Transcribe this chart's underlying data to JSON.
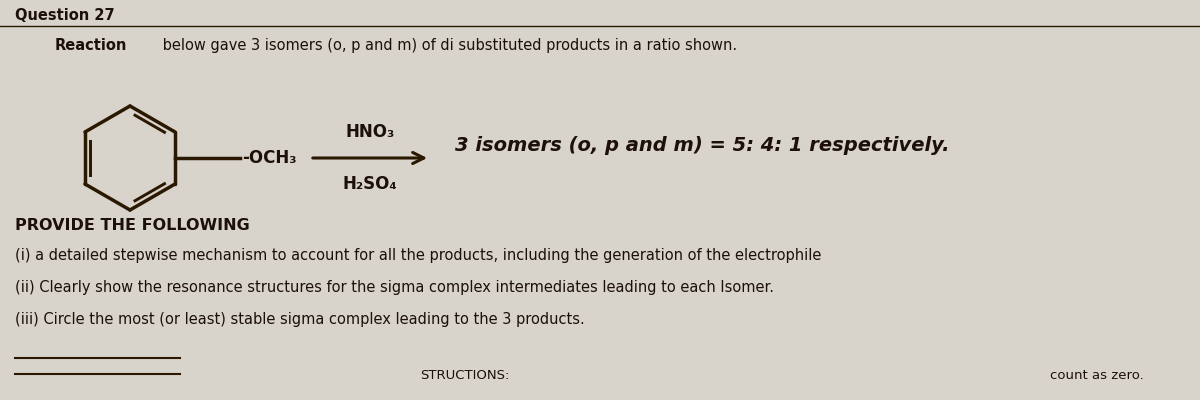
{
  "background_color": "#d8d4cc",
  "panel_color": "#e8e5df",
  "title": "Question 27",
  "title_fontsize": 10.5,
  "reaction_line1": "Reaction below gave 3 isomers (o, p and m) of di substituted products in a ratio shown.",
  "reagent_top": "HNO₃",
  "reagent_bottom": "H₂SO₄",
  "substituent": "-OCH₃",
  "ratio_text": "3 isomers (o, p and m) = 5: 4: 1 respectively.",
  "provide_header": "PROVIDE THE FOLLOWING",
  "item_i": "(i) a detailed stepwise mechanism to account for all the products, including the generation of the electrophile",
  "item_ii": "(ii) Clearly show the resonance structures for the sigma complex intermediates leading to each Isomer.",
  "item_iii": "(iii) Circle the most (or least) stable sigma complex leading to the 3 products.",
  "instructions_partial": "STRUCTIONS:",
  "count_partial": "count as zero.",
  "font_color": "#1c1008",
  "line_color": "#2a1800",
  "benzene_lw": 2.5,
  "arrow_color": "#1c1008"
}
